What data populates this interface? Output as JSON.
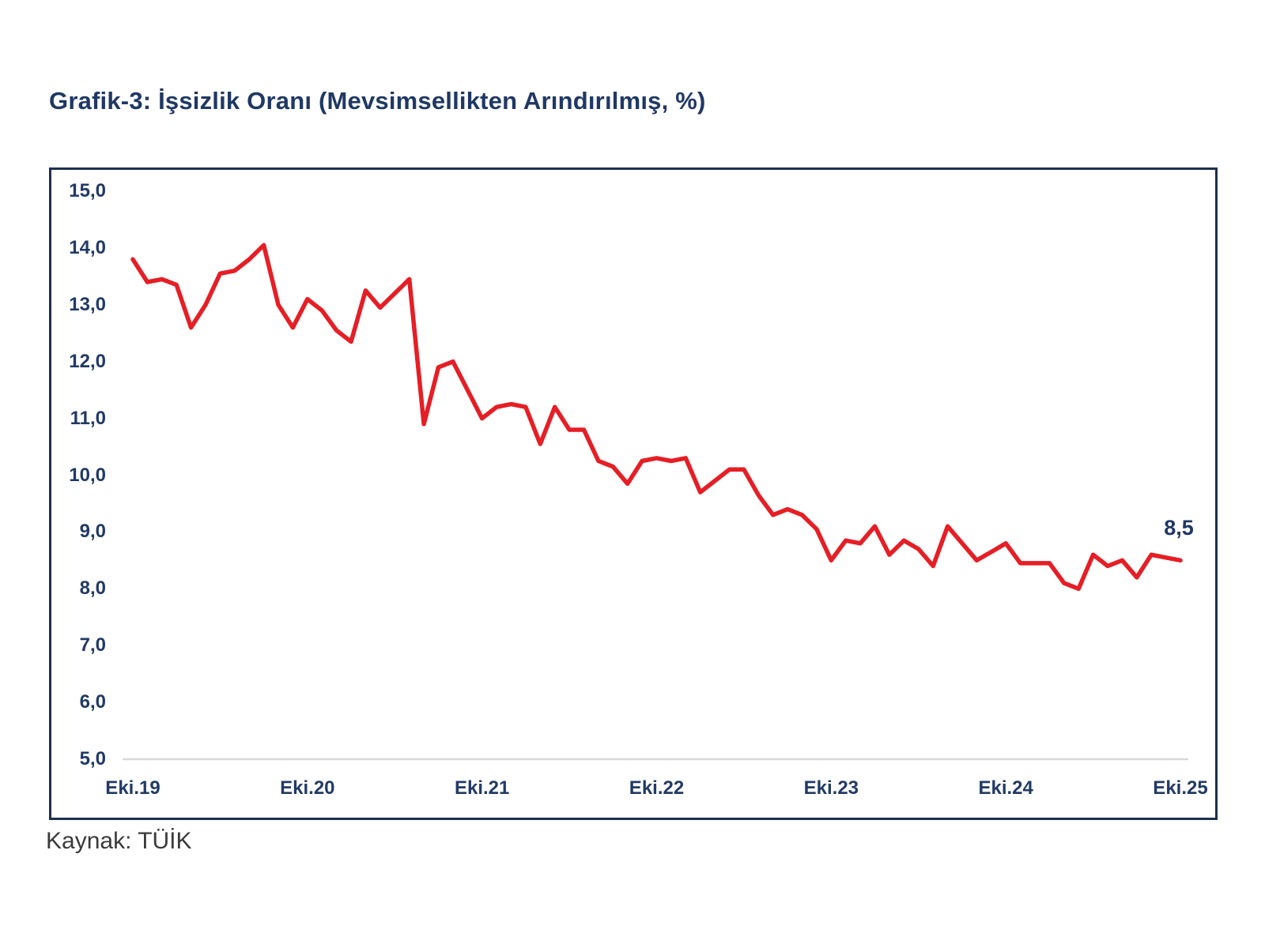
{
  "title": "Grafik-3: İşsizlik Oranı (Mevsimsellikten Arındırılmış, %)",
  "source_note": "Kaynak: TÜİK",
  "colors": {
    "line_red": "#e61e25",
    "navy_text": "#1f3864",
    "tick_text": "#213a66",
    "frame_border": "#1e3050",
    "baseline_gray": "#d9d9d9",
    "source_text": "#3a3a3a",
    "background": "#ffffff"
  },
  "chart_data": {
    "type": "line",
    "title": "Grafik-3: İşsizlik Oranı (Mevsimsellikten Arındırılmış, %)",
    "unit": "%",
    "frequency": "monthly",
    "n_points": 73,
    "x_start": "Eki.19",
    "x_end": "Eki.25",
    "x_tick_labels": [
      "Eki.19",
      "Eki.20",
      "Eki.21",
      "Eki.22",
      "Eki.23",
      "Eki.24",
      "Eki.25"
    ],
    "x_tick_month_interval": 12,
    "y_tick_labels": [
      "15,0",
      "14,0",
      "13,0",
      "12,0",
      "11,0",
      "10,0",
      "9,0",
      "8,0",
      "7,0",
      "6,0",
      "5,0"
    ],
    "ylim": [
      5.0,
      15.0
    ],
    "grid": false,
    "legend": false,
    "line_color": "#e61e25",
    "last_point_label": "8,5",
    "series": [
      {
        "name": "İşsizlik Oranı (Mevsimsellikten Arındırılmış, %)",
        "values": [
          13.8,
          13.4,
          13.45,
          13.35,
          12.6,
          13.0,
          13.55,
          13.6,
          13.8,
          14.05,
          13.0,
          12.6,
          13.1,
          12.9,
          12.55,
          12.35,
          13.25,
          12.95,
          13.2,
          13.45,
          10.9,
          11.9,
          12.0,
          11.5,
          11.0,
          11.2,
          11.25,
          11.2,
          10.55,
          11.2,
          10.8,
          10.8,
          10.25,
          10.15,
          9.85,
          10.25,
          10.3,
          10.25,
          10.3,
          9.7,
          9.9,
          10.1,
          10.1,
          9.65,
          9.3,
          9.4,
          9.3,
          9.05,
          8.5,
          8.85,
          8.8,
          9.1,
          8.6,
          8.85,
          8.7,
          8.4,
          9.1,
          8.8,
          8.5,
          8.65,
          8.8,
          8.45,
          8.45,
          8.45,
          8.1,
          8.0,
          8.6,
          8.4,
          8.5,
          8.2,
          8.6,
          8.55,
          8.5
        ]
      }
    ]
  }
}
